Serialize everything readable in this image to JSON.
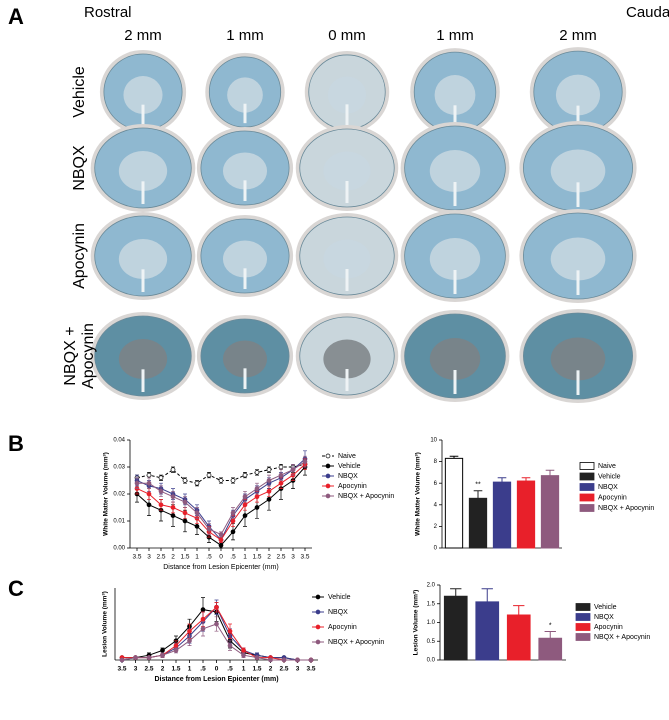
{
  "panels": {
    "a": "A",
    "b": "B",
    "c": "C"
  },
  "panel_a": {
    "rostral": "Rostral",
    "caudal": "Caudal",
    "columns": [
      "2 mm",
      "1 mm",
      "0 mm",
      "1 mm",
      "2 mm"
    ],
    "rows": [
      "Vehicle",
      "NBQX",
      "Apocynin",
      "NBQX + Apocynin"
    ]
  },
  "chart_data": [
    {
      "type": "line",
      "y_label": "White Matter Volume (mm³)",
      "x_label": "Distance from Lesion Epicenter (mm)",
      "categories": [
        "3.5",
        "3",
        "2.5",
        "2",
        "1.5",
        "1",
        ".5",
        "0",
        ".5",
        "1",
        "1.5",
        "2",
        "2.5",
        "3",
        "3.5"
      ],
      "ylim": [
        0,
        0.04
      ],
      "yticks": [
        {
          "value": 0,
          "label": "0.00"
        },
        {
          "value": 0.01,
          "label": "0.01"
        },
        {
          "value": 0.02,
          "label": "0.02"
        },
        {
          "value": 0.03,
          "label": "0.03"
        },
        {
          "value": 0.04,
          "label": "0.04"
        }
      ],
      "series": [
        {
          "name": "Naive",
          "color": "#000000",
          "marker_fill": "#ffffff",
          "linestyle": "dashed",
          "values": [
            0.026,
            0.027,
            0.026,
            0.029,
            0.025,
            0.024,
            0.027,
            0.025,
            0.025,
            0.027,
            0.028,
            0.029,
            0.03,
            0.03,
            0.031
          ],
          "errors": [
            0.001,
            0.001,
            0.001,
            0.001,
            0.001,
            0.001,
            0.001,
            0.001,
            0.001,
            0.001,
            0.001,
            0.001,
            0.001,
            0.001,
            0.002
          ]
        },
        {
          "name": "Vehicle",
          "color": "#000000",
          "marker_fill": "#000000",
          "linestyle": "solid",
          "values": [
            0.02,
            0.016,
            0.014,
            0.012,
            0.01,
            0.008,
            0.004,
            0.001,
            0.006,
            0.012,
            0.015,
            0.018,
            0.022,
            0.025,
            0.03
          ],
          "errors": [
            0.003,
            0.004,
            0.004,
            0.004,
            0.004,
            0.003,
            0.002,
            0.001,
            0.003,
            0.004,
            0.004,
            0.004,
            0.004,
            0.003,
            0.003
          ]
        },
        {
          "name": "NBQX",
          "color": "#3b3d8c",
          "marker_fill": "#3b3d8c",
          "linestyle": "solid",
          "values": [
            0.025,
            0.023,
            0.022,
            0.02,
            0.018,
            0.014,
            0.008,
            0.003,
            0.012,
            0.018,
            0.021,
            0.024,
            0.026,
            0.029,
            0.033
          ],
          "errors": [
            0.002,
            0.002,
            0.002,
            0.002,
            0.002,
            0.002,
            0.002,
            0.001,
            0.002,
            0.002,
            0.002,
            0.002,
            0.002,
            0.002,
            0.003
          ]
        },
        {
          "name": "Apocynin",
          "color": "#e8202a",
          "marker_fill": "#e8202a",
          "linestyle": "solid",
          "values": [
            0.022,
            0.02,
            0.016,
            0.015,
            0.013,
            0.011,
            0.006,
            0.003,
            0.01,
            0.016,
            0.019,
            0.021,
            0.024,
            0.027,
            0.031
          ],
          "errors": [
            0.002,
            0.002,
            0.002,
            0.002,
            0.002,
            0.002,
            0.002,
            0.001,
            0.002,
            0.002,
            0.002,
            0.002,
            0.002,
            0.002,
            0.002
          ]
        },
        {
          "name": "NBQX + Apocynin",
          "color": "#8e5a7e",
          "marker_fill": "#8e5a7e",
          "linestyle": "solid",
          "values": [
            0.024,
            0.024,
            0.021,
            0.019,
            0.017,
            0.013,
            0.007,
            0.005,
            0.013,
            0.019,
            0.022,
            0.025,
            0.027,
            0.029,
            0.032
          ],
          "errors": [
            0.002,
            0.002,
            0.002,
            0.002,
            0.002,
            0.002,
            0.002,
            0.001,
            0.002,
            0.002,
            0.002,
            0.002,
            0.002,
            0.002,
            0.002
          ]
        }
      ]
    },
    {
      "type": "bar",
      "y_label": "White Matter Volume (mm³)",
      "categories": [
        "Naive",
        "Vehicle",
        "NBQX",
        "Apocynin",
        "NBQX + Apocynin"
      ],
      "values": [
        8.3,
        4.6,
        6.1,
        6.2,
        6.7
      ],
      "errors": [
        0.2,
        0.7,
        0.4,
        0.3,
        0.5
      ],
      "colors": [
        "#ffffff",
        "#222222",
        "#3b3d8c",
        "#e8202a",
        "#8e5a7e"
      ],
      "significance": [
        null,
        "**",
        null,
        null,
        null
      ],
      "ylim": [
        0,
        10
      ],
      "yticks": [
        0,
        2,
        4,
        6,
        8,
        10
      ]
    },
    {
      "type": "line",
      "y_label": "Lesion Volume (mm³)",
      "x_label": "Distance from Lesion Epicenter (mm)",
      "categories": [
        "3.5",
        "3",
        "2.5",
        "2",
        "1.5",
        "1",
        ".5",
        "0",
        ".5",
        "1",
        "1.5",
        "2",
        "2.5",
        "3",
        "3.5"
      ],
      "ylim": [
        0,
        0.03
      ],
      "series": [
        {
          "name": "Vehicle",
          "color": "#000000",
          "marker_fill": "#000000",
          "linestyle": "solid",
          "values": [
            0.001,
            0.001,
            0.002,
            0.004,
            0.008,
            0.014,
            0.021,
            0.02,
            0.008,
            0.003,
            0.002,
            0.001,
            0.001,
            0,
            0
          ],
          "errors": [
            0.0005,
            0.0005,
            0.001,
            0.001,
            0.002,
            0.003,
            0.005,
            0.004,
            0.003,
            0.001,
            0.001,
            0.0005,
            0.0005,
            0,
            0
          ]
        },
        {
          "name": "NBQX",
          "color": "#3b3d8c",
          "marker_fill": "#3b3d8c",
          "linestyle": "solid",
          "values": [
            0,
            0.001,
            0.001,
            0.002,
            0.005,
            0.01,
            0.016,
            0.022,
            0.01,
            0.004,
            0.002,
            0.001,
            0.001,
            0,
            0
          ],
          "errors": [
            0,
            0.0005,
            0.0005,
            0.001,
            0.002,
            0.003,
            0.004,
            0.003,
            0.003,
            0.001,
            0.001,
            0.0005,
            0.0005,
            0,
            0
          ]
        },
        {
          "name": "Apocynin",
          "color": "#e8202a",
          "marker_fill": "#e8202a",
          "linestyle": "solid",
          "values": [
            0.001,
            0.001,
            0.001,
            0.002,
            0.006,
            0.012,
            0.017,
            0.022,
            0.012,
            0.004,
            0.001,
            0.001,
            0,
            0,
            0
          ],
          "errors": [
            0.0005,
            0.0005,
            0.0005,
            0.001,
            0.002,
            0.003,
            0.003,
            0.002,
            0.003,
            0.001,
            0.0005,
            0.0005,
            0,
            0,
            0
          ]
        },
        {
          "name": "NBQX + Apocynin",
          "color": "#8e5a7e",
          "marker_fill": "#8e5a7e",
          "linestyle": "solid",
          "values": [
            0,
            0.001,
            0.001,
            0.002,
            0.004,
            0.008,
            0.013,
            0.015,
            0.006,
            0.002,
            0.001,
            0,
            0,
            0,
            0
          ],
          "errors": [
            0,
            0.0005,
            0.0005,
            0.001,
            0.001,
            0.002,
            0.003,
            0.003,
            0.002,
            0.001,
            0.0005,
            0,
            0,
            0,
            0
          ]
        }
      ]
    },
    {
      "type": "bar",
      "y_label": "Lesion Volume (mm³)",
      "categories": [
        "Vehicle",
        "NBQX",
        "Apocynin",
        "NBQX + Apocynin"
      ],
      "values": [
        1.7,
        1.55,
        1.2,
        0.58
      ],
      "errors": [
        0.2,
        0.35,
        0.25,
        0.18
      ],
      "colors": [
        "#222222",
        "#3b3d8c",
        "#e8202a",
        "#8e5a7e"
      ],
      "significance": [
        null,
        null,
        null,
        "*"
      ],
      "ylim": [
        0,
        2
      ],
      "yticks": [
        {
          "value": 0,
          "label": "0.0"
        },
        0.5,
        {
          "value": 1,
          "label": "1.0"
        },
        1.5,
        {
          "value": 2,
          "label": "2.0"
        }
      ]
    }
  ]
}
